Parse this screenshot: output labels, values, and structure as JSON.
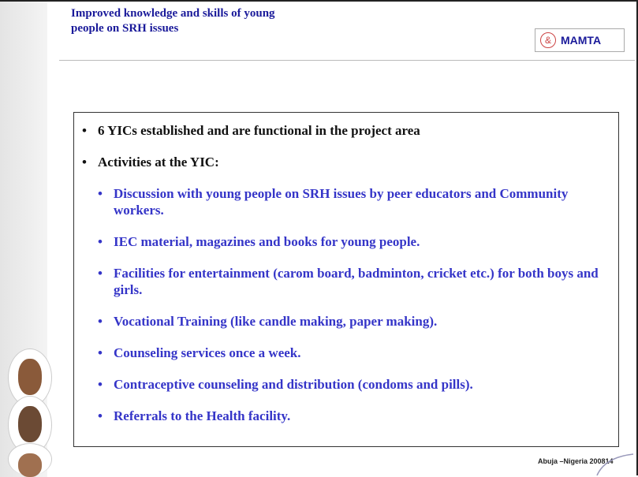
{
  "header": {
    "title_lines": [
      "Improved knowledge and skills of young",
      "people on SRH issues"
    ],
    "logo": {
      "symbol": "&",
      "text": "MAMTA"
    }
  },
  "bullets": [
    {
      "text": "6 YICs established and are functional in the project area",
      "level": 1
    },
    {
      "text": "Activities at the YIC:",
      "level": 1
    },
    {
      "text": "Discussion with young people on SRH issues by peer educators and Community workers.",
      "level": 2
    },
    {
      "text": "IEC material, magazines and books for young people.",
      "level": 2
    },
    {
      "text": "Facilities for entertainment (carom board, badminton, cricket etc.) for both boys and girls.",
      "level": 2
    },
    {
      "text": "Vocational Training (like candle making, paper making).",
      "level": 2
    },
    {
      "text": "Counseling services once a week.",
      "level": 2
    },
    {
      "text": "Contraceptive counseling and distribution (condoms and pills).",
      "level": 2
    },
    {
      "text": "Referrals to the Health facility.",
      "level": 2
    }
  ],
  "footer": {
    "text": "Abuja –Nigeria 200814"
  }
}
